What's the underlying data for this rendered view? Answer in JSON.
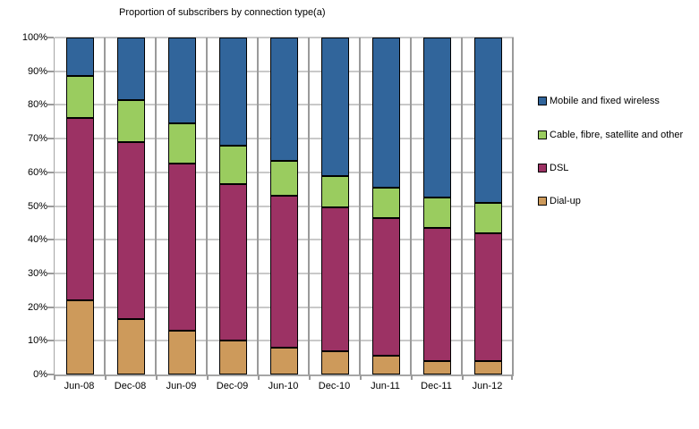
{
  "title": "Proportion of subscribers by connection type(a)",
  "chart_data": {
    "type": "bar",
    "variant": "100%-stacked-column",
    "title": "Proportion of subscribers by connection type(a)",
    "xlabel": "",
    "ylabel": "",
    "ylim": [
      0,
      100
    ],
    "grid": true,
    "y_ticks": [
      "100%",
      "90%",
      "80%",
      "70%",
      "60%",
      "50%",
      "40%",
      "30%",
      "20%",
      "10%",
      "0%"
    ],
    "categories": [
      "Jun-08",
      "Dec-08",
      "Jun-09",
      "Dec-09",
      "Jun-10",
      "Dec-10",
      "Jun-11",
      "Dec-11",
      "Jun-12"
    ],
    "series": [
      {
        "name": "Dial-up",
        "color": "#CD9A5B",
        "values": [
          22,
          16.5,
          13,
          10,
          8,
          7,
          5.5,
          4,
          4
        ]
      },
      {
        "name": "DSL",
        "color": "#9C3264",
        "values": [
          54,
          52.5,
          49.5,
          46.5,
          45,
          42.5,
          41,
          39.5,
          38
        ]
      },
      {
        "name": "Cable, fibre, satellite and other",
        "color": "#9ACC5F",
        "values": [
          12.5,
          12.5,
          12,
          11.5,
          10.5,
          9.5,
          9,
          9,
          9
        ]
      },
      {
        "name": "Mobile and fixed wireless",
        "color": "#31659B",
        "values": [
          11.5,
          18.5,
          25.5,
          32,
          36.5,
          41,
          44.5,
          47.5,
          49
        ]
      }
    ],
    "legend": {
      "position": "right",
      "order_top_to_bottom": [
        "Mobile and fixed wireless",
        "Cable, fibre, satellite and other",
        "DSL",
        "Dial-up"
      ]
    }
  },
  "colors": {
    "gridline_horizontal": "#C9C9C9",
    "gridline_vertical": "#9A9A9A",
    "axis": "#A6A6A6",
    "bar_border": "#000000",
    "background": "#FFFFFF",
    "text": "#000000"
  }
}
